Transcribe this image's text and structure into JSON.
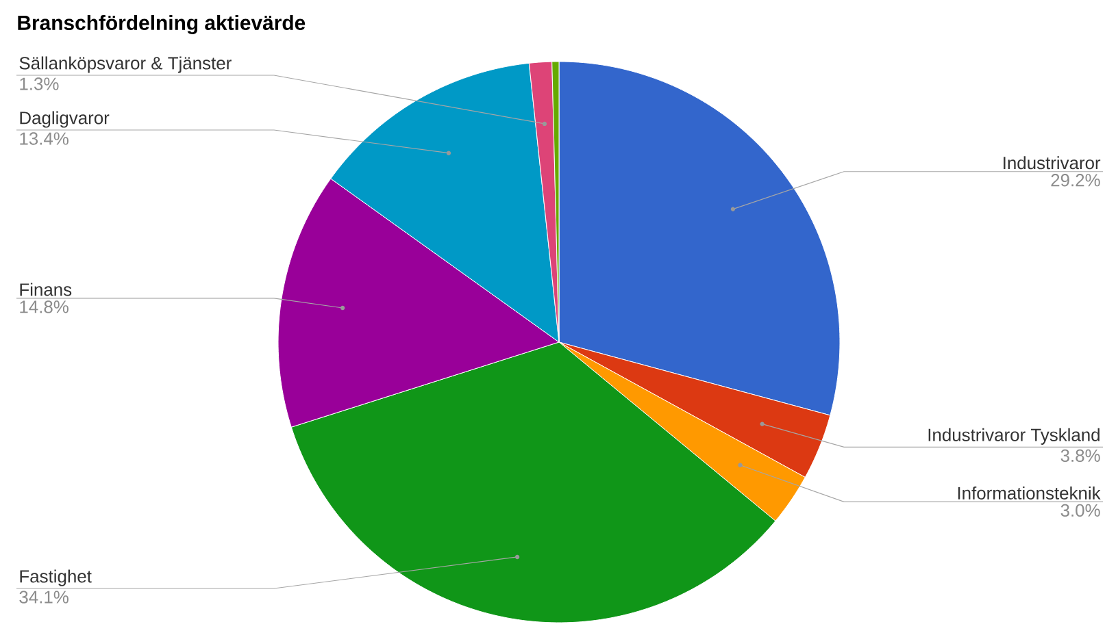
{
  "chart_data": {
    "type": "pie",
    "title": "Branschfördelning aktievärde",
    "categories": [
      "Industrivaror",
      "Industrivaror Tyskland",
      "Informationsteknik",
      "Fastighet",
      "Finans",
      "Dagligvaror",
      "Sällanköpsvaror & Tjänster",
      null
    ],
    "values": [
      29.2,
      3.8,
      3.0,
      34.1,
      14.8,
      13.4,
      1.3,
      0.4
    ],
    "value_labels": [
      "29.2%",
      "3.8%",
      "3.0%",
      "34.1%",
      "14.8%",
      "13.4%",
      "1.3%",
      null
    ],
    "colors": [
      "#3366cc",
      "#dc3912",
      "#ff9900",
      "#109618",
      "#990099",
      "#0099c6",
      "#dd4477",
      "#66aa00"
    ]
  }
}
